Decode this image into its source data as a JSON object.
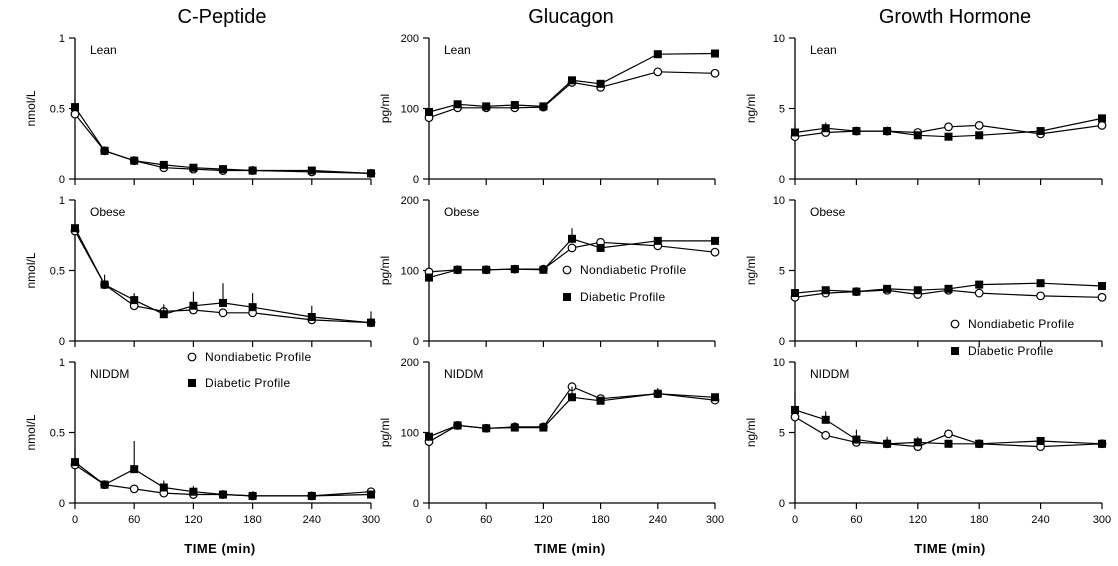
{
  "column_titles": [
    "C-Peptide",
    "Glucagon",
    "Growth Hormone"
  ],
  "xlabel": "TIME (min)",
  "legend": {
    "nondiabetic": "Nondiabetic Profile",
    "diabetic": "Diabetic Profile"
  },
  "chart_data": [
    {
      "type": "line",
      "column_title": "C-Peptide",
      "panel_label": "Lean",
      "ylabel": "nmol/L",
      "ylim": [
        0,
        1
      ],
      "yticks": [
        "0",
        "0.5",
        "1"
      ],
      "xlim": [
        0,
        300
      ],
      "xticks": [
        "0",
        "60",
        "120",
        "180",
        "240",
        "300"
      ],
      "show_xticklabels": false,
      "x": [
        0,
        30,
        60,
        90,
        120,
        150,
        180,
        240,
        300
      ],
      "series": [
        {
          "name": "Nondiabetic Profile",
          "values": [
            0.46,
            0.2,
            0.13,
            0.08,
            0.07,
            0.06,
            0.06,
            0.05,
            0.04
          ]
        },
        {
          "name": "Diabetic Profile",
          "values": [
            0.51,
            0.2,
            0.13,
            0.1,
            0.08,
            0.07,
            0.06,
            0.06,
            0.04
          ],
          "err": [
            0.06,
            0,
            0,
            0,
            0,
            0,
            0,
            0,
            0
          ]
        }
      ]
    },
    {
      "type": "line",
      "column_title": "Glucagon",
      "panel_label": "Lean",
      "ylabel": "pg/ml",
      "ylim": [
        0,
        200
      ],
      "yticks": [
        "0",
        "100",
        "200"
      ],
      "xlim": [
        0,
        300
      ],
      "xticks": [
        "0",
        "60",
        "120",
        "180",
        "240",
        "300"
      ],
      "show_xticklabels": false,
      "x": [
        0,
        30,
        60,
        90,
        120,
        150,
        180,
        240,
        300
      ],
      "series": [
        {
          "name": "Nondiabetic Profile",
          "values": [
            87,
            101,
            101,
            101,
            102,
            137,
            130,
            152,
            150
          ]
        },
        {
          "name": "Diabetic Profile",
          "values": [
            95,
            106,
            103,
            105,
            103,
            140,
            135,
            177,
            178
          ],
          "err": [
            0,
            0,
            0,
            0,
            0,
            0,
            0,
            0,
            0
          ]
        }
      ]
    },
    {
      "type": "line",
      "column_title": "Growth Hormone",
      "panel_label": "Lean",
      "ylabel": "ng/ml",
      "ylim": [
        0,
        10
      ],
      "yticks": [
        "0",
        "5",
        "10"
      ],
      "xlim": [
        0,
        300
      ],
      "xticks": [
        "0",
        "60",
        "120",
        "180",
        "240",
        "300"
      ],
      "show_xticklabels": false,
      "x": [
        0,
        30,
        60,
        90,
        120,
        150,
        180,
        240,
        300
      ],
      "series": [
        {
          "name": "Nondiabetic Profile",
          "values": [
            3.0,
            3.3,
            3.4,
            3.4,
            3.3,
            3.7,
            3.8,
            3.2,
            3.8
          ]
        },
        {
          "name": "Diabetic Profile",
          "values": [
            3.3,
            3.6,
            3.4,
            3.4,
            3.1,
            3.0,
            3.1,
            3.4,
            4.3
          ],
          "err": [
            0.5,
            0.4,
            0,
            0,
            0,
            0,
            0,
            0,
            0
          ]
        }
      ]
    },
    {
      "type": "line",
      "column_title": "C-Peptide",
      "panel_label": "Obese",
      "ylabel": "nmol/L",
      "ylim": [
        0,
        1
      ],
      "yticks": [
        "0",
        "0.5",
        "1"
      ],
      "xlim": [
        0,
        300
      ],
      "xticks": [
        "0",
        "60",
        "120",
        "180",
        "240",
        "300"
      ],
      "show_xticklabels": false,
      "x": [
        0,
        30,
        60,
        90,
        120,
        150,
        180,
        240,
        300
      ],
      "series": [
        {
          "name": "Nondiabetic Profile",
          "values": [
            0.78,
            0.4,
            0.25,
            0.21,
            0.22,
            0.2,
            0.2,
            0.15,
            0.13
          ]
        },
        {
          "name": "Diabetic Profile",
          "values": [
            0.8,
            0.4,
            0.29,
            0.19,
            0.25,
            0.27,
            0.24,
            0.17,
            0.13
          ],
          "err": [
            0.14,
            0.07,
            0.05,
            0.07,
            0.1,
            0.14,
            0.1,
            0.08,
            0.08
          ]
        }
      ]
    },
    {
      "type": "line",
      "column_title": "Glucagon",
      "panel_label": "Obese",
      "ylabel": "pg/ml",
      "ylim": [
        0,
        200
      ],
      "yticks": [
        "0",
        "100",
        "200"
      ],
      "xlim": [
        0,
        300
      ],
      "xticks": [
        "0",
        "60",
        "120",
        "180",
        "240",
        "300"
      ],
      "show_xticklabels": false,
      "x": [
        0,
        30,
        60,
        90,
        120,
        150,
        180,
        240,
        300
      ],
      "series": [
        {
          "name": "Nondiabetic Profile",
          "values": [
            98,
            101,
            101,
            102,
            102,
            132,
            140,
            135,
            126
          ]
        },
        {
          "name": "Diabetic Profile",
          "values": [
            90,
            101,
            101,
            102,
            101,
            145,
            132,
            142,
            142
          ],
          "err": [
            0,
            0,
            0,
            0,
            0,
            15,
            0,
            0,
            0
          ]
        }
      ]
    },
    {
      "type": "line",
      "column_title": "Growth Hormone",
      "panel_label": "Obese",
      "ylabel": "ng/ml",
      "ylim": [
        0,
        10
      ],
      "yticks": [
        "0",
        "5",
        "10"
      ],
      "xlim": [
        0,
        300
      ],
      "xticks": [
        "0",
        "60",
        "120",
        "180",
        "240",
        "300"
      ],
      "show_xticklabels": false,
      "x": [
        0,
        30,
        60,
        90,
        120,
        150,
        180,
        240,
        300
      ],
      "series": [
        {
          "name": "Nondiabetic Profile",
          "values": [
            3.1,
            3.4,
            3.5,
            3.6,
            3.3,
            3.6,
            3.4,
            3.2,
            3.1
          ]
        },
        {
          "name": "Diabetic Profile",
          "values": [
            3.4,
            3.6,
            3.5,
            3.7,
            3.6,
            3.7,
            4.0,
            4.1,
            3.9
          ],
          "err": [
            0,
            0,
            0,
            0,
            0,
            0,
            0,
            0,
            0
          ]
        }
      ]
    },
    {
      "type": "line",
      "column_title": "C-Peptide",
      "panel_label": "NIDDM",
      "ylabel": "nmol/L",
      "ylim": [
        0,
        1
      ],
      "yticks": [
        "0",
        "0.5",
        "1"
      ],
      "xlim": [
        0,
        300
      ],
      "xticks": [
        "0",
        "60",
        "120",
        "180",
        "240",
        "300"
      ],
      "show_xticklabels": true,
      "x": [
        0,
        30,
        60,
        90,
        120,
        150,
        180,
        240,
        300
      ],
      "series": [
        {
          "name": "Nondiabetic Profile",
          "values": [
            0.27,
            0.13,
            0.1,
            0.07,
            0.06,
            0.06,
            0.05,
            0.05,
            0.08
          ]
        },
        {
          "name": "Diabetic Profile",
          "values": [
            0.29,
            0.13,
            0.24,
            0.11,
            0.08,
            0.06,
            0.05,
            0.05,
            0.06
          ],
          "err": [
            0.1,
            0,
            0.2,
            0.05,
            0.04,
            0,
            0,
            0,
            0
          ]
        }
      ]
    },
    {
      "type": "line",
      "column_title": "Glucagon",
      "panel_label": "NIDDM",
      "ylabel": "pg/ml",
      "ylim": [
        0,
        200
      ],
      "yticks": [
        "0",
        "100",
        "200"
      ],
      "xlim": [
        0,
        300
      ],
      "xticks": [
        "0",
        "60",
        "120",
        "180",
        "240",
        "300"
      ],
      "show_xticklabels": true,
      "x": [
        0,
        30,
        60,
        90,
        120,
        150,
        180,
        240,
        300
      ],
      "series": [
        {
          "name": "Nondiabetic Profile",
          "values": [
            87,
            110,
            106,
            108,
            108,
            165,
            148,
            155,
            146
          ]
        },
        {
          "name": "Diabetic Profile",
          "values": [
            94,
            110,
            106,
            107,
            107,
            150,
            145,
            155,
            150
          ],
          "err": [
            0,
            0,
            0,
            0,
            0,
            15,
            0,
            8,
            0
          ]
        }
      ]
    },
    {
      "type": "line",
      "column_title": "Growth Hormone",
      "panel_label": "NIDDM",
      "ylabel": "ng/ml",
      "ylim": [
        0,
        10
      ],
      "yticks": [
        "0",
        "5",
        "10"
      ],
      "xlim": [
        0,
        300
      ],
      "xticks": [
        "0",
        "60",
        "120",
        "180",
        "240",
        "300"
      ],
      "show_xticklabels": true,
      "x": [
        0,
        30,
        60,
        90,
        120,
        150,
        180,
        240,
        300
      ],
      "series": [
        {
          "name": "Nondiabetic Profile",
          "values": [
            6.1,
            4.8,
            4.3,
            4.2,
            4.0,
            4.9,
            4.2,
            4.0,
            4.2
          ]
        },
        {
          "name": "Diabetic Profile",
          "values": [
            6.6,
            5.9,
            4.5,
            4.2,
            4.3,
            4.2,
            4.2,
            4.4,
            4.2
          ],
          "err": [
            1.3,
            0.6,
            0.7,
            0.5,
            0.4,
            0,
            0,
            0,
            0
          ]
        }
      ]
    }
  ]
}
